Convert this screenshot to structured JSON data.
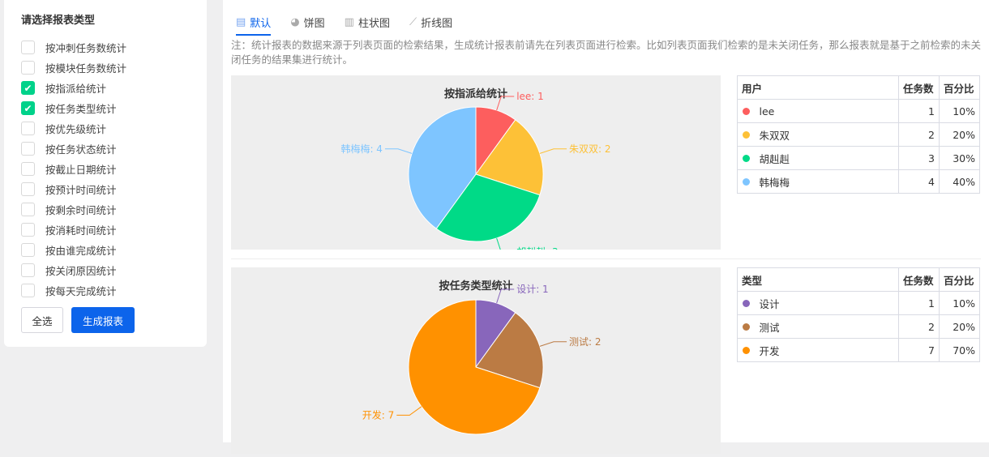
{
  "sidebar": {
    "title": "请选择报表类型",
    "options": [
      {
        "label": "按冲刺任务数统计",
        "checked": false
      },
      {
        "label": "按模块任务数统计",
        "checked": false
      },
      {
        "label": "按指派给统计",
        "checked": true
      },
      {
        "label": "按任务类型统计",
        "checked": true
      },
      {
        "label": "按优先级统计",
        "checked": false
      },
      {
        "label": "按任务状态统计",
        "checked": false
      },
      {
        "label": "按截止日期统计",
        "checked": false
      },
      {
        "label": "按预计时间统计",
        "checked": false
      },
      {
        "label": "按剩余时间统计",
        "checked": false
      },
      {
        "label": "按消耗时间统计",
        "checked": false
      },
      {
        "label": "按由谁完成统计",
        "checked": false
      },
      {
        "label": "按关闭原因统计",
        "checked": false
      },
      {
        "label": "按每天完成统计",
        "checked": false
      }
    ],
    "select_all": "全选",
    "generate": "生成报表"
  },
  "tabs": [
    {
      "label": "默认",
      "icon": "table-icon",
      "active": true
    },
    {
      "label": "饼图",
      "icon": "pie-icon"
    },
    {
      "label": "柱状图",
      "icon": "bar-chart-icon"
    },
    {
      "label": "折线图",
      "icon": "line-chart-icon"
    }
  ],
  "note": "注：统计报表的数据来源于列表页面的检索结果，生成统计报表前请先在列表页面进行检索。比如列表页面我们检索的是未关闭任务，那么报表就是基于之前检索的未关闭任务的结果集进行统计。",
  "chart_data": [
    {
      "type": "pie",
      "title": "按指派给统计",
      "categories": [
        "lee",
        "朱双双",
        "胡赳赳",
        "韩梅梅"
      ],
      "values": [
        1,
        2,
        3,
        4
      ],
      "colors": [
        "#fd5e5e",
        "#fdc137",
        "#00da87",
        "#7ec5ff"
      ],
      "table": {
        "headers": [
          "用户",
          "任务数",
          "百分比"
        ],
        "percents": [
          "10%",
          "20%",
          "30%",
          "40%"
        ]
      }
    },
    {
      "type": "pie",
      "title": "按任务类型统计",
      "categories": [
        "设计",
        "测试",
        "开发"
      ],
      "values": [
        1,
        2,
        7
      ],
      "colors": [
        "#8866bb",
        "#bb7b44",
        "#ff9100"
      ],
      "table": {
        "headers": [
          "类型",
          "任务数",
          "百分比"
        ],
        "percents": [
          "10%",
          "20%",
          "70%"
        ]
      }
    }
  ]
}
